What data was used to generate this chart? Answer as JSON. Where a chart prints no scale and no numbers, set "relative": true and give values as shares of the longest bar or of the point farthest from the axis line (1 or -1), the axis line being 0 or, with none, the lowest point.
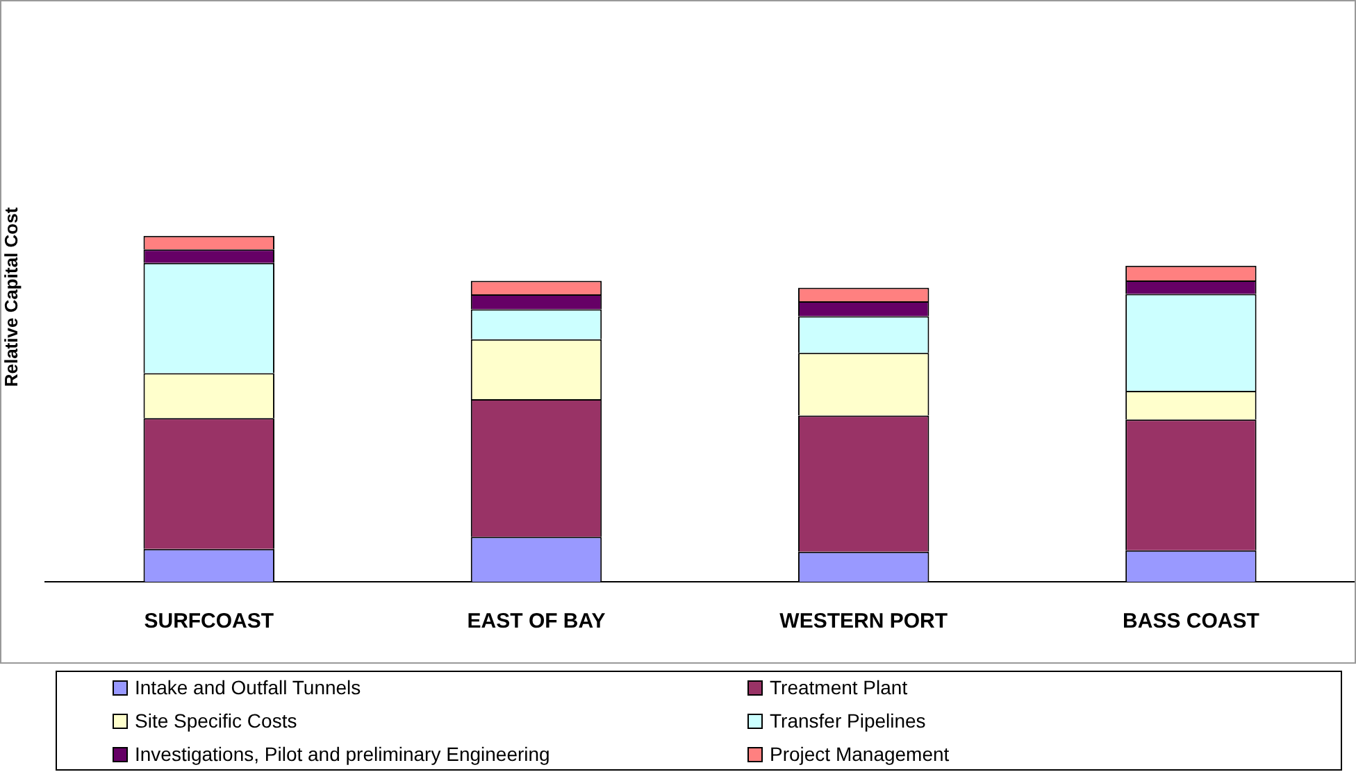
{
  "chart_data": {
    "type": "bar",
    "stacked": true,
    "relative": true,
    "ylabel": "Relative Capital Cost",
    "legend": "bottom",
    "grid": false,
    "categories": [
      "SURFCOAST",
      "EAST OF BAY",
      "WESTERN PORT",
      "BASS COAST"
    ],
    "series": [
      {
        "name": "Intake and Outfall Tunnels",
        "color": "#9999ff",
        "values": [
          0.095,
          0.13,
          0.087,
          0.091
        ]
      },
      {
        "name": "Treatment Plant",
        "color": "#993366",
        "values": [
          0.378,
          0.398,
          0.394,
          0.378
        ]
      },
      {
        "name": "Site Specific Costs",
        "color": "#ffffcc",
        "values": [
          0.13,
          0.173,
          0.181,
          0.083
        ]
      },
      {
        "name": "Transfer Pipelines",
        "color": "#ccffff",
        "values": [
          0.319,
          0.087,
          0.106,
          0.28
        ]
      },
      {
        "name": "Investigations, Pilot and preliminary Engineering",
        "color": "#660066",
        "values": [
          0.039,
          0.043,
          0.043,
          0.039
        ]
      },
      {
        "name": "Project Management",
        "color": "#ff8080",
        "values": [
          0.039,
          0.039,
          0.039,
          0.043
        ]
      }
    ]
  }
}
